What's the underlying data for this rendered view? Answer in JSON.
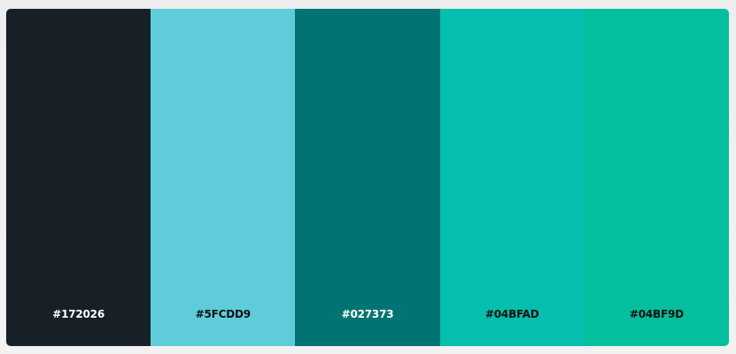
{
  "palette": {
    "swatches": [
      {
        "hex": "#172026",
        "label": "#172026",
        "text_color": "#ffffff"
      },
      {
        "hex": "#5FCDD9",
        "label": "#5FCDD9",
        "text_color": "#101010"
      },
      {
        "hex": "#027373",
        "label": "#027373",
        "text_color": "#ffffff"
      },
      {
        "hex": "#04BFAD",
        "label": "#04BFAD",
        "text_color": "#101010"
      },
      {
        "hex": "#04BF9D",
        "label": "#04BF9D",
        "text_color": "#101010"
      }
    ]
  }
}
